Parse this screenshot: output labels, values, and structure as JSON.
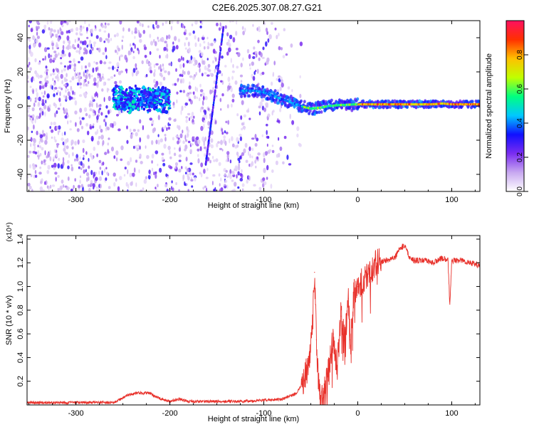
{
  "figure_title": "C2E6.2025.307.08.27.G21",
  "chart_data": [
    {
      "type": "heatmap",
      "xlabel": "Height of straight line (km)",
      "ylabel": "Frequency (Hz)",
      "xlim": [
        -352,
        130
      ],
      "ylim": [
        -50,
        50
      ],
      "xticks": [
        -300,
        -200,
        -100,
        0,
        100
      ],
      "yticks": [
        -40,
        -20,
        0,
        20,
        40
      ],
      "colorbar": {
        "label": "Normalized spectral amplitude",
        "range": [
          0.0,
          1.0
        ],
        "ticks": [
          0.0,
          0.2,
          0.4,
          0.6,
          0.8
        ],
        "tick_labels": [
          "0.0",
          "0.2",
          "0.4",
          "0.6",
          "0.8"
        ],
        "colormap": [
          "#ffffff",
          "#c8a8f0",
          "#7a2cf0",
          "#1010ff",
          "#00c8ff",
          "#00ff80",
          "#c0ff00",
          "#ffc000",
          "#ff3000",
          "#ff1060"
        ]
      },
      "ridge": {
        "x": [
          -125,
          -110,
          -100,
          -90,
          -80,
          -70,
          -60,
          -50,
          -40,
          -30,
          -20,
          0,
          20,
          40,
          60,
          80,
          90,
          100,
          130
        ],
        "y": [
          9,
          9,
          8,
          6,
          4,
          2,
          0,
          -1.5,
          -1,
          0,
          0.5,
          1,
          1,
          1,
          1,
          1,
          1.5,
          1,
          1
        ]
      },
      "cluster": {
        "x_range": [
          -260,
          -200
        ],
        "y_center": 4
      }
    },
    {
      "type": "line",
      "xlabel": "Height of straight line (km)",
      "ylabel": "SNR (10 * v/v)",
      "y_multiplier": "(x10⁴)",
      "xlim": [
        -352,
        130
      ],
      "ylim": [
        0,
        1.43
      ],
      "xticks": [
        -300,
        -200,
        -100,
        0,
        100
      ],
      "yticks": [
        0.2,
        0.4,
        0.6,
        0.8,
        1.0,
        1.2,
        1.4
      ],
      "ytick_labels": [
        "0.2",
        "0.4",
        "0.6",
        "0.8",
        "1.0",
        "1.2",
        "1.4"
      ],
      "series": [
        {
          "color": "#e8312b",
          "x": [
            -352,
            -300,
            -260,
            -245,
            -235,
            -222,
            -210,
            -200,
            -190,
            -180,
            -150,
            -120,
            -100,
            -80,
            -65,
            -58,
            -52,
            -48,
            -46,
            -44,
            -42,
            -40,
            -36,
            -30,
            -26,
            -22,
            -18,
            -14,
            -10,
            -8,
            -4,
            0,
            10,
            20,
            30,
            40,
            45,
            50,
            55,
            60,
            70,
            80,
            90,
            96,
            98,
            100,
            110,
            120,
            130
          ],
          "y": [
            0.02,
            0.02,
            0.02,
            0.08,
            0.1,
            0.1,
            0.05,
            0.03,
            0.05,
            0.03,
            0.03,
            0.03,
            0.04,
            0.05,
            0.1,
            0.2,
            0.35,
            0.7,
            1.12,
            0.55,
            0.2,
            0.04,
            0.1,
            0.35,
            0.6,
            0.3,
            0.75,
            0.6,
            0.9,
            0.55,
            0.95,
            1.0,
            1.1,
            1.2,
            1.22,
            1.25,
            1.32,
            1.35,
            1.25,
            1.22,
            1.22,
            1.2,
            1.24,
            1.22,
            0.85,
            1.22,
            1.22,
            1.2,
            1.18
          ]
        }
      ]
    }
  ]
}
